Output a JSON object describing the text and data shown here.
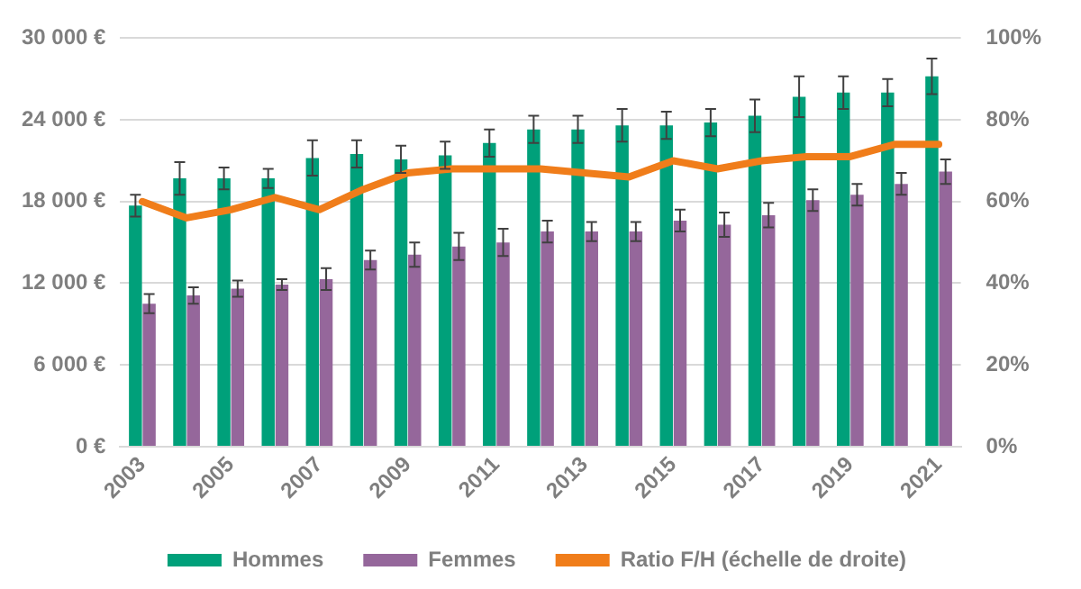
{
  "chart_data": {
    "type": "bar",
    "categories": [
      "2003",
      null,
      "2005",
      null,
      "2007",
      null,
      "2009",
      null,
      "2011",
      null,
      "2013",
      null,
      "2015",
      null,
      "2017",
      null,
      "2019",
      null,
      "2021"
    ],
    "series": [
      {
        "name": "Hommes",
        "color": "#00a07a",
        "values": [
          17700,
          19700,
          19700,
          19700,
          21200,
          21500,
          21100,
          21400,
          22300,
          23300,
          23300,
          23600,
          23600,
          23800,
          24300,
          25700,
          26000,
          26000,
          27200
        ],
        "errors": [
          800,
          1200,
          800,
          700,
          1300,
          1000,
          1000,
          1000,
          1000,
          1000,
          1000,
          1200,
          1000,
          1000,
          1200,
          1500,
          1200,
          1000,
          1300
        ]
      },
      {
        "name": "Femmes",
        "color": "#95679b",
        "values": [
          10500,
          11100,
          11600,
          11900,
          12300,
          13700,
          14100,
          14700,
          15000,
          15800,
          15800,
          15800,
          16600,
          16300,
          17000,
          18100,
          18500,
          19300,
          20200
        ],
        "errors": [
          700,
          600,
          600,
          400,
          800,
          700,
          900,
          1000,
          1000,
          800,
          700,
          700,
          800,
          900,
          900,
          800,
          800,
          800,
          900
        ]
      },
      {
        "name": "Ratio F/H (échelle de droite)",
        "type": "line",
        "axis": "y2",
        "color": "#f07d1a",
        "values": [
          60,
          56,
          58,
          61,
          58,
          63,
          67,
          68,
          68,
          68,
          67,
          66,
          70,
          68,
          70,
          71,
          71,
          74,
          74
        ]
      }
    ],
    "ylim": [
      0,
      30000
    ],
    "yticks": [
      {
        "value": 0,
        "label": "0 €"
      },
      {
        "value": 6000,
        "label": "6 000 €"
      },
      {
        "value": 12000,
        "label": "12 000 €"
      },
      {
        "value": 18000,
        "label": "18 000 €"
      },
      {
        "value": 24000,
        "label": "24 000 €"
      },
      {
        "value": 30000,
        "label": "30 000 €"
      }
    ],
    "y2lim": [
      0,
      100
    ],
    "y2ticks": [
      {
        "value": 0,
        "label": "0%"
      },
      {
        "value": 20,
        "label": "20%"
      },
      {
        "value": 40,
        "label": "40%"
      },
      {
        "value": 60,
        "label": "60%"
      },
      {
        "value": 80,
        "label": "80%"
      },
      {
        "value": 100,
        "label": "100%"
      }
    ],
    "grid": "y",
    "legend": "bottom",
    "marker": "none",
    "line_style": "solid"
  }
}
